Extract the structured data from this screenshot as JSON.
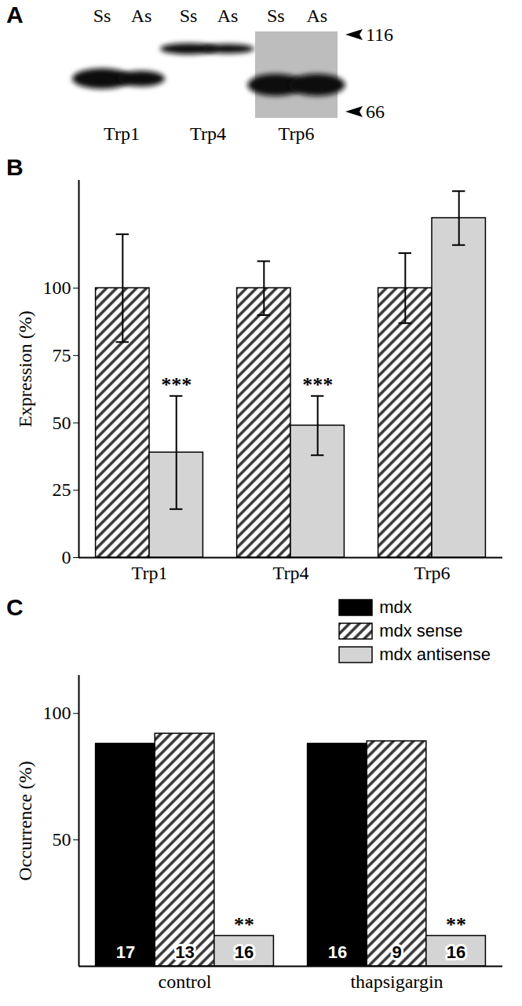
{
  "blot": {
    "title": "A",
    "lanes": [
      "Ss",
      "As"
    ],
    "proteins": [
      "Trp1",
      "Trp4",
      "Trp6"
    ],
    "markers": [
      116,
      66
    ]
  },
  "chart_data": [
    {
      "type": "bar",
      "title": "B",
      "ylabel": "Expression (%)",
      "categories": [
        "Trp1",
        "Trp4",
        "Trp6"
      ],
      "ylim": [
        0,
        140
      ],
      "yticks": [
        0,
        25,
        50,
        75,
        100
      ],
      "series": [
        {
          "name": "mdx sense",
          "color": "#333333",
          "line_style": "hatched",
          "values": [
            100,
            100,
            100
          ],
          "errors": [
            20,
            10,
            13
          ]
        },
        {
          "name": "mdx antisense",
          "color": "#d4d4d4",
          "values": [
            39,
            49,
            126
          ],
          "errors": [
            21,
            11,
            10
          ],
          "significance": [
            "***",
            "***",
            null
          ]
        }
      ]
    },
    {
      "type": "bar",
      "title": "C",
      "ylabel": "Occurrence (%)",
      "categories": [
        "control",
        "thapsigargin"
      ],
      "ylim": [
        0,
        115
      ],
      "yticks": [
        50,
        100
      ],
      "legend": "top-right",
      "series": [
        {
          "name": "mdx",
          "color": "#000000",
          "values": [
            88,
            88
          ],
          "n": [
            17,
            16
          ]
        },
        {
          "name": "mdx sense",
          "color": "#333333",
          "line_style": "hatched",
          "values": [
            92,
            89
          ],
          "n": [
            13,
            9
          ]
        },
        {
          "name": "mdx antisense",
          "color": "#d4d4d4",
          "values": [
            12,
            12
          ],
          "n": [
            16,
            16
          ],
          "significance": [
            "**",
            "**"
          ]
        }
      ]
    }
  ]
}
